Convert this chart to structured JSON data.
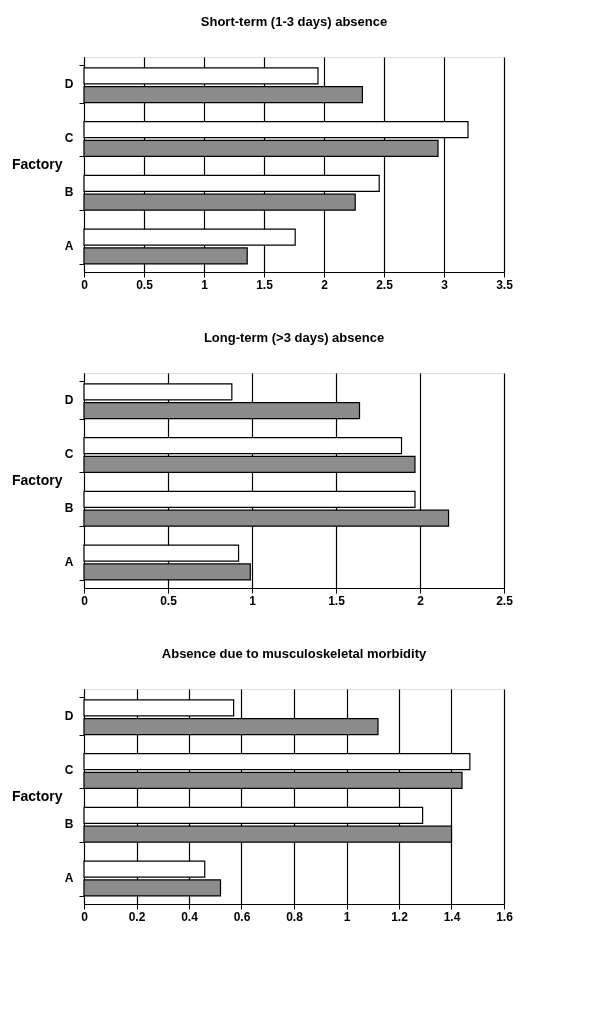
{
  "chart_data": [
    {
      "type": "bar",
      "orientation": "horizontal",
      "title": "Short-term (1-3 days) absence",
      "ylabel": "Factory",
      "categories": [
        "D",
        "C",
        "B",
        "A"
      ],
      "series": [
        {
          "color": "#ffffff",
          "values": [
            1.95,
            3.2,
            2.46,
            1.76
          ]
        },
        {
          "color": "#8c8c8c",
          "values": [
            2.32,
            2.95,
            2.26,
            1.36
          ]
        }
      ],
      "xlim": [
        0,
        3.5
      ],
      "xticks": [
        0,
        0.5,
        1,
        1.5,
        2,
        2.5,
        3,
        3.5
      ],
      "grid": "x",
      "legend": false
    },
    {
      "type": "bar",
      "orientation": "horizontal",
      "title": "Long-term (>3 days) absence",
      "ylabel": "Factory",
      "categories": [
        "D",
        "C",
        "B",
        "A"
      ],
      "series": [
        {
          "color": "#ffffff",
          "values": [
            0.88,
            1.89,
            1.97,
            0.92
          ]
        },
        {
          "color": "#8c8c8c",
          "values": [
            1.64,
            1.97,
            2.17,
            0.99
          ]
        }
      ],
      "xlim": [
        0,
        2.5
      ],
      "xticks": [
        0,
        0.5,
        1,
        1.5,
        2,
        2.5
      ],
      "grid": "x",
      "legend": false
    },
    {
      "type": "bar",
      "orientation": "horizontal",
      "title": "Absence due to musculoskeletal morbidity",
      "ylabel": "Factory",
      "categories": [
        "D",
        "C",
        "B",
        "A"
      ],
      "series": [
        {
          "color": "#ffffff",
          "values": [
            0.57,
            1.47,
            1.29,
            0.46
          ]
        },
        {
          "color": "#8c8c8c",
          "values": [
            1.12,
            1.44,
            1.4,
            0.52
          ]
        }
      ],
      "xlim": [
        0,
        1.6
      ],
      "xticks": [
        0,
        0.2,
        0.4,
        0.6,
        0.8,
        1,
        1.2,
        1.4,
        1.6
      ],
      "grid": "x",
      "legend": false
    }
  ]
}
